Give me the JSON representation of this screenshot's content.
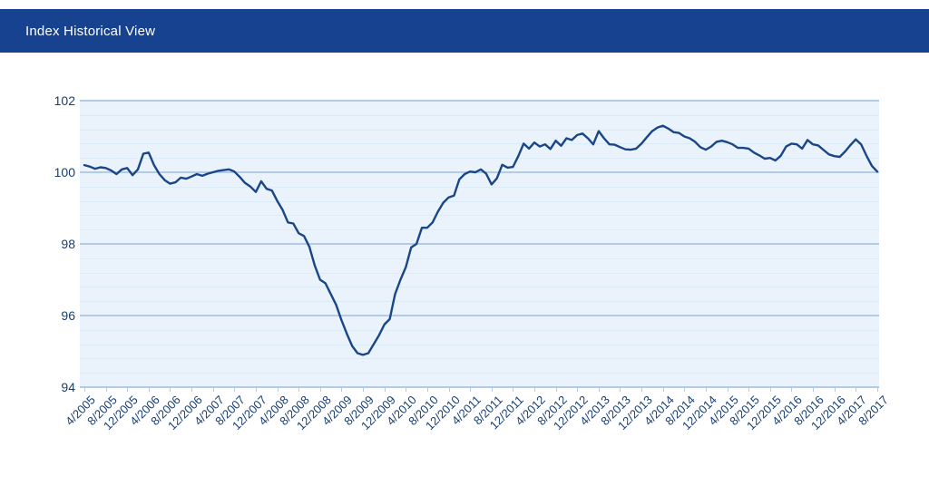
{
  "header": {
    "title": "Index Historical View",
    "bg_color": "#17428f",
    "text_color": "#ffffff"
  },
  "chart_data": {
    "type": "line",
    "title": "Index Historical View",
    "xlabel": "",
    "ylabel": "",
    "legend": "none",
    "grid": "on",
    "ylim": [
      94,
      102
    ],
    "y_ticks": [
      "94",
      "96",
      "98",
      "100",
      "102"
    ],
    "minor_grid_step": 0.4,
    "x_unit": "month",
    "x_range": [
      "4/2005",
      "8/2017"
    ],
    "x_tick_labels": [
      "4/2005",
      "8/2005",
      "12/2005",
      "4/2006",
      "8/2006",
      "12/2006",
      "4/2007",
      "8/2007",
      "12/2007",
      "4/2008",
      "8/2008",
      "12/2008",
      "4/2009",
      "8/2009",
      "12/2009",
      "4/2010",
      "8/2010",
      "12/2010",
      "4/2011",
      "8/2011",
      "12/2011",
      "4/2012",
      "8/2012",
      "12/2012",
      "4/2013",
      "8/2013",
      "12/2013",
      "4/2014",
      "8/2014",
      "12/2014",
      "4/2015",
      "8/2015",
      "12/2015",
      "4/2016",
      "8/2016",
      "12/2016",
      "4/2017",
      "8/2017"
    ],
    "series": [
      {
        "name": "index",
        "start": "4/2005",
        "interval_months": 1,
        "values": [
          100.2,
          100.16,
          100.1,
          100.14,
          100.12,
          100.05,
          99.95,
          100.08,
          100.12,
          99.92,
          100.08,
          100.52,
          100.55,
          100.2,
          99.95,
          99.78,
          99.68,
          99.72,
          99.85,
          99.82,
          99.88,
          99.95,
          99.9,
          99.96,
          100.0,
          100.04,
          100.06,
          100.08,
          100.02,
          99.87,
          99.7,
          99.6,
          99.45,
          99.75,
          99.54,
          99.49,
          99.2,
          98.95,
          98.6,
          98.57,
          98.3,
          98.22,
          97.92,
          97.4,
          97.0,
          96.9,
          96.6,
          96.3,
          95.87,
          95.49,
          95.15,
          94.95,
          94.9,
          94.95,
          95.2,
          95.45,
          95.75,
          95.9,
          96.6,
          97.0,
          97.35,
          97.9,
          98.0,
          98.45,
          98.45,
          98.6,
          98.9,
          99.15,
          99.3,
          99.35,
          99.8,
          99.95,
          100.02,
          100.0,
          100.08,
          99.96,
          99.66,
          99.83,
          100.21,
          100.13,
          100.15,
          100.45,
          100.8,
          100.66,
          100.83,
          100.72,
          100.78,
          100.65,
          100.88,
          100.74,
          100.95,
          100.9,
          101.04,
          101.08,
          100.95,
          100.78,
          101.15,
          100.95,
          100.78,
          100.77,
          100.7,
          100.64,
          100.63,
          100.66,
          100.8,
          100.98,
          101.15,
          101.25,
          101.3,
          101.22,
          101.12,
          101.1,
          101.0,
          100.95,
          100.85,
          100.7,
          100.63,
          100.72,
          100.85,
          100.88,
          100.84,
          100.78,
          100.68,
          100.68,
          100.66,
          100.55,
          100.47,
          100.38,
          100.4,
          100.33,
          100.46,
          100.72,
          100.8,
          100.78,
          100.66,
          100.9,
          100.78,
          100.75,
          100.62,
          100.5,
          100.45,
          100.43,
          100.58,
          100.76,
          100.92,
          100.78,
          100.46,
          100.18,
          100.02
        ]
      }
    ],
    "colors": {
      "line": "#1a4688",
      "plot_bg": "#eaf2fb",
      "grid_major": "#b3cbe6",
      "grid_minor": "#dcebf8",
      "axis_label": "#173f73"
    }
  }
}
